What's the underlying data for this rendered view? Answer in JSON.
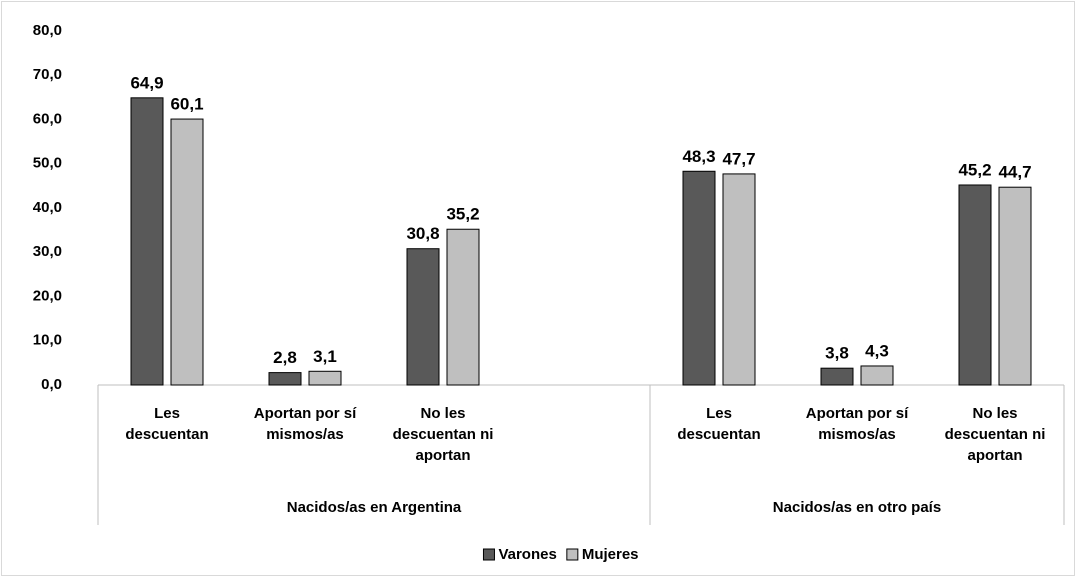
{
  "chart_data": {
    "type": "bar",
    "groups": [
      {
        "name": "Nacidos/as en Argentina",
        "categories": [
          "Les descuentan",
          "Aportan por sí mismos/as",
          "No les descuentan ni aportan",
          null
        ]
      },
      {
        "name": "Nacidos/as en otro país",
        "categories": [
          "Les descuentan",
          "Aportan por sí mismos/as",
          "No les descuentan ni aportan"
        ]
      }
    ],
    "series": [
      {
        "name": "Varones",
        "color": "#595959",
        "values": [
          64.9,
          2.8,
          30.8,
          null,
          48.3,
          3.8,
          45.2
        ],
        "value_labels": [
          "64,9",
          "2,8",
          "30,8",
          null,
          "48,3",
          "3,8",
          "45,2"
        ]
      },
      {
        "name": "Mujeres",
        "color": "#bfbfbf",
        "values": [
          60.1,
          3.1,
          35.2,
          null,
          47.7,
          4.3,
          44.7
        ],
        "value_labels": [
          "60,1",
          "3,1",
          "35,2",
          null,
          "47,7",
          "4,3",
          "44,7"
        ]
      }
    ],
    "ylim": [
      0,
      80
    ],
    "yticks": [
      {
        "value": 0,
        "label": "0,0"
      },
      {
        "value": 10,
        "label": "10,0"
      },
      {
        "value": 20,
        "label": "20,0"
      },
      {
        "value": 30,
        "label": "30,0"
      },
      {
        "value": 40,
        "label": "40,0"
      },
      {
        "value": 50,
        "label": "50,0"
      },
      {
        "value": 60,
        "label": "60,0"
      },
      {
        "value": 70,
        "label": "70,0"
      },
      {
        "value": 80,
        "label": "80,0"
      }
    ],
    "grid": false,
    "legend": "bottom"
  }
}
